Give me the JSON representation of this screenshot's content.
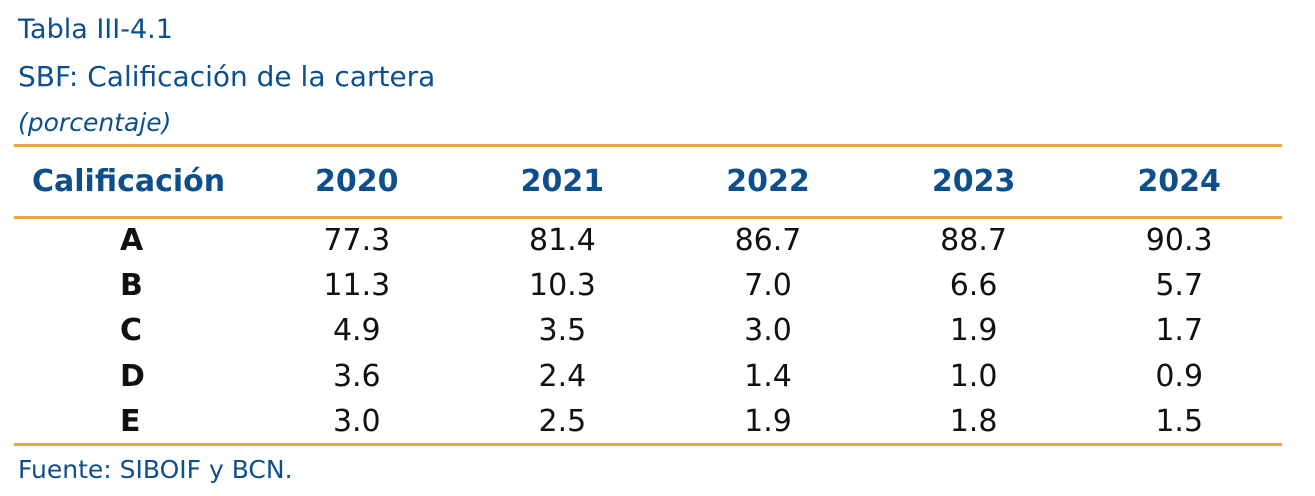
{
  "table_number": "Tabla III-4.1",
  "title": "SBF: Calificación de la cartera",
  "unit": "(porcentaje)",
  "columns": [
    "Calificación",
    "2020",
    "2021",
    "2022",
    "2023",
    "2024"
  ],
  "rows": [
    {
      "label": "A",
      "values": [
        "77.3",
        "81.4",
        "86.7",
        "88.7",
        "90.3"
      ]
    },
    {
      "label": "B",
      "values": [
        "11.3",
        "10.3",
        "7.0",
        "6.6",
        "5.7"
      ]
    },
    {
      "label": "C",
      "values": [
        "4.9",
        "3.5",
        "3.0",
        "1.9",
        "1.7"
      ]
    },
    {
      "label": "D",
      "values": [
        "3.6",
        "2.4",
        "1.4",
        "1.0",
        "0.9"
      ]
    },
    {
      "label": "E",
      "values": [
        "3.0",
        "2.5",
        "1.9",
        "1.8",
        "1.5"
      ]
    }
  ],
  "source": "Fuente: SIBOIF y BCN.",
  "colors": {
    "heading_text": "#0d4f8b",
    "rule_lines": "#e3ac3a",
    "body_text": "#111111"
  }
}
